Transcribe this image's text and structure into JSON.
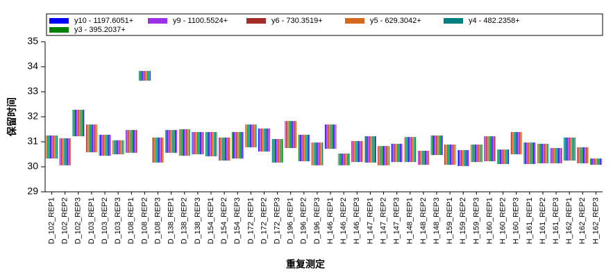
{
  "chart_data": {
    "type": "range-bar",
    "xlabel": "重复测定",
    "ylabel": "保留时间",
    "series": [
      {
        "name": "y10 - 1197.6051+",
        "color": "#0000ff"
      },
      {
        "name": "y9 - 1100.5524+",
        "color": "#9932e6"
      },
      {
        "name": "y6 - 730.3519+",
        "color": "#a52a2a"
      },
      {
        "name": "y5 - 629.3042+",
        "color": "#d2691e"
      },
      {
        "name": "y4 - 482.2358+",
        "color": "#008080"
      },
      {
        "name": "y3 - 395.2037+",
        "color": "#008000"
      }
    ],
    "categories": [
      "D_102_REP1",
      "D_102_REP2",
      "D_102_REP3",
      "D_103_REP1",
      "D_103_REP2",
      "D_103_REP3",
      "D_108_REP1",
      "D_108_REP2",
      "D_108_REP3",
      "D_138_REP1",
      "D_138_REP2",
      "D_138_REP3",
      "D_154_REP1",
      "D_154_REP2",
      "D_154_REP3",
      "D_172_REP1",
      "D_172_REP2",
      "D_172_REP3",
      "D_196_REP1",
      "D_196_REP2",
      "D_196_REP3",
      "H_146_REP1",
      "H_146_REP2",
      "H_146_REP3",
      "H_147_REP1",
      "H_147_REP2",
      "H_147_REP3",
      "H_148_REP1",
      "H_148_REP2",
      "H_148_REP3",
      "H_159_REP1",
      "H_159_REP2",
      "H_159_REP3",
      "H_160_REP1",
      "H_160_REP2",
      "H_160_REP3",
      "H_161_REP1",
      "H_161_REP2",
      "H_161_REP3",
      "H_162_REP1",
      "H_162_REP2",
      "H_162_REP3"
    ],
    "low": [
      30.33,
      30.06,
      31.22,
      30.58,
      30.44,
      30.5,
      30.56,
      33.44,
      30.17,
      30.56,
      30.44,
      30.5,
      30.42,
      30.25,
      30.33,
      30.78,
      30.61,
      30.17,
      30.75,
      30.22,
      30.06,
      30.72,
      30.06,
      30.19,
      30.17,
      30.06,
      30.19,
      30.19,
      30.08,
      30.47,
      30.08,
      30.03,
      30.19,
      30.22,
      30.11,
      30.5,
      30.11,
      30.14,
      30.14,
      30.25,
      30.14,
      30.08
    ],
    "high": [
      31.25,
      31.14,
      32.28,
      31.69,
      31.28,
      31.06,
      31.47,
      33.83,
      31.17,
      31.47,
      31.5,
      31.39,
      31.39,
      31.17,
      31.39,
      31.69,
      31.53,
      31.11,
      31.83,
      31.28,
      30.97,
      31.69,
      30.53,
      31.03,
      31.22,
      30.83,
      30.92,
      31.19,
      30.64,
      31.25,
      30.89,
      30.67,
      30.89,
      31.22,
      30.69,
      31.39,
      30.97,
      30.92,
      30.75,
      31.17,
      30.78,
      30.33
    ],
    "ylim": [
      29,
      35
    ],
    "yticks": [
      29,
      30,
      31,
      32,
      33,
      34,
      35
    ]
  }
}
